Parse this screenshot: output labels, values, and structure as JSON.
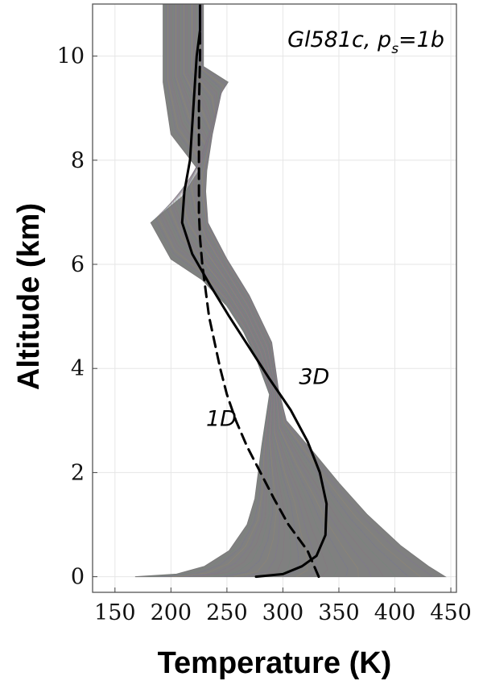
{
  "chart_data": {
    "type": "line",
    "title_main": "Gl581c, p",
    "title_sub": "s",
    "title_tail": "=1b",
    "xlabel": "Temperature (K)",
    "ylabel": "Altitude (km)",
    "xlim": [
      130,
      455
    ],
    "ylim": [
      -0.3,
      11
    ],
    "xticks": [
      150,
      200,
      250,
      300,
      350,
      400,
      450
    ],
    "yticks": [
      0,
      2,
      4,
      6,
      8,
      10
    ],
    "grid": true,
    "series": [
      {
        "name": "1D",
        "style": "dashed",
        "color": "#000000",
        "x": [
          332,
          322,
          305,
          292,
          280,
          268,
          258,
          250,
          244,
          239,
          234,
          231,
          228,
          226,
          225,
          225,
          225,
          225,
          226,
          226
        ],
        "y": [
          0,
          0.5,
          1.0,
          1.5,
          2.0,
          2.5,
          3.0,
          3.5,
          4.0,
          4.5,
          5.0,
          5.5,
          6.0,
          6.5,
          7.0,
          7.5,
          8.0,
          9.0,
          10.0,
          11.0
        ]
      },
      {
        "name": "3D",
        "style": "solid",
        "color": "#000000",
        "x": [
          276,
          300,
          317,
          330,
          338,
          339,
          333,
          322,
          307,
          288,
          270,
          252,
          235,
          219,
          210,
          212,
          217,
          220,
          223,
          226,
          226
        ],
        "y": [
          0,
          0.05,
          0.2,
          0.4,
          0.8,
          1.4,
          2.0,
          2.6,
          3.2,
          3.8,
          4.4,
          5.0,
          5.6,
          6.2,
          6.8,
          7.4,
          8.0,
          9.0,
          10.0,
          10.5,
          11.0
        ]
      }
    ],
    "envelope": {
      "color": "#808080",
      "left_x": [
        168,
        205,
        230,
        252,
        268,
        275,
        281,
        288,
        276,
        265,
        250,
        228,
        200,
        182,
        210,
        225,
        200,
        193,
        193
      ],
      "left_y": [
        0,
        0.05,
        0.2,
        0.5,
        1.0,
        1.5,
        2.5,
        3.5,
        4.2,
        4.7,
        5.2,
        5.7,
        6.1,
        6.8,
        7.3,
        7.8,
        8.5,
        9.5,
        11.0
      ],
      "right_x": [
        445,
        430,
        405,
        375,
        350,
        327,
        303,
        296,
        290,
        270,
        250,
        233,
        231,
        232,
        237,
        245,
        251,
        229,
        229
      ],
      "right_y": [
        0,
        0.2,
        0.6,
        1.2,
        1.8,
        2.4,
        3.0,
        3.6,
        4.5,
        5.4,
        6.1,
        6.8,
        7.4,
        7.8,
        8.5,
        9.3,
        9.5,
        9.8,
        11.0
      ]
    },
    "annotations": [
      {
        "text": "1D",
        "x": 245,
        "y": 2.9
      },
      {
        "text": "3D",
        "x": 328,
        "y": 3.7
      }
    ]
  }
}
